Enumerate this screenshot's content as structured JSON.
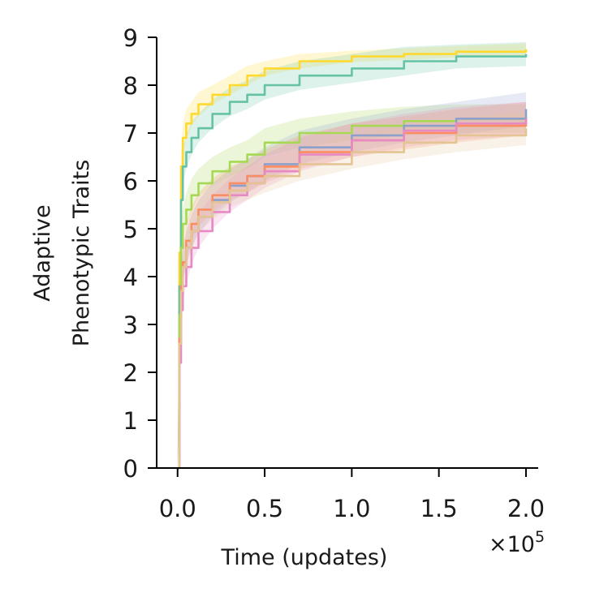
{
  "chart_data": {
    "type": "line",
    "xlabel": "Time (updates)",
    "x_multiplier_base": "×10",
    "x_multiplier_exp": "5",
    "ylabel_lines": [
      "Adaptive",
      "Phenotypic Traits"
    ],
    "xlim": [
      -0.12,
      2.07
    ],
    "ylim": [
      0,
      9
    ],
    "xticks": [
      0.0,
      0.5,
      1.0,
      1.5,
      2.0
    ],
    "xtick_labels": [
      "0.0",
      "0.5",
      "1.0",
      "1.5",
      "2.0"
    ],
    "yticks": [
      0,
      1,
      2,
      3,
      4,
      5,
      6,
      7,
      8,
      9
    ],
    "ytick_labels": [
      "0",
      "1",
      "2",
      "3",
      "4",
      "5",
      "6",
      "7",
      "8",
      "9"
    ],
    "grid": false,
    "series": [
      {
        "color": "#ffd92f",
        "x": [
          0,
          0.01,
          0.02,
          0.03,
          0.05,
          0.08,
          0.12,
          0.2,
          0.3,
          0.4,
          0.5,
          0.7,
          1.0,
          1.3,
          1.6,
          2.0
        ],
        "y": [
          0,
          4.5,
          6.3,
          6.9,
          7.2,
          7.4,
          7.6,
          7.8,
          8.0,
          8.2,
          8.35,
          8.5,
          8.6,
          8.65,
          8.7,
          8.75
        ],
        "band": [
          0.25,
          0.35,
          0.3,
          0.3,
          0.3,
          0.25,
          0.25,
          0.2,
          0.2,
          0.2,
          0.15,
          0.15,
          0.12,
          0.12,
          0.12,
          0.12
        ]
      },
      {
        "color": "#66c2a5",
        "x": [
          0,
          0.01,
          0.02,
          0.03,
          0.05,
          0.08,
          0.12,
          0.2,
          0.3,
          0.4,
          0.5,
          0.7,
          1.0,
          1.3,
          1.6,
          2.0
        ],
        "y": [
          0,
          3.8,
          5.6,
          6.3,
          6.6,
          6.9,
          7.1,
          7.4,
          7.65,
          7.8,
          8.0,
          8.2,
          8.35,
          8.5,
          8.6,
          8.65
        ],
        "band": [
          0.3,
          0.45,
          0.4,
          0.4,
          0.35,
          0.35,
          0.3,
          0.3,
          0.3,
          0.3,
          0.3,
          0.3,
          0.3,
          0.3,
          0.25,
          0.25
        ]
      },
      {
        "color": "#a6d854",
        "x": [
          0,
          0.01,
          0.02,
          0.03,
          0.05,
          0.08,
          0.12,
          0.2,
          0.3,
          0.4,
          0.5,
          0.7,
          1.0,
          1.3,
          1.6,
          2.0
        ],
        "y": [
          0,
          3.2,
          4.6,
          5.1,
          5.4,
          5.7,
          5.95,
          6.2,
          6.4,
          6.55,
          6.8,
          7.0,
          7.15,
          7.25,
          7.3,
          7.3
        ],
        "band": [
          0.3,
          0.45,
          0.4,
          0.35,
          0.35,
          0.35,
          0.3,
          0.3,
          0.3,
          0.3,
          0.3,
          0.3,
          0.3,
          0.3,
          0.3,
          0.3
        ]
      },
      {
        "color": "#8da0cb",
        "x": [
          0,
          0.01,
          0.02,
          0.03,
          0.05,
          0.08,
          0.12,
          0.2,
          0.3,
          0.4,
          0.5,
          0.7,
          1.0,
          1.3,
          1.6,
          2.0
        ],
        "y": [
          0,
          2.6,
          3.7,
          4.2,
          4.6,
          4.95,
          5.25,
          5.6,
          5.9,
          6.1,
          6.35,
          6.7,
          6.95,
          7.15,
          7.3,
          7.5
        ],
        "band": [
          0.3,
          0.4,
          0.4,
          0.35,
          0.35,
          0.35,
          0.35,
          0.35,
          0.35,
          0.35,
          0.35,
          0.35,
          0.35,
          0.35,
          0.35,
          0.35
        ]
      },
      {
        "color": "#fc8d62",
        "x": [
          0,
          0.01,
          0.02,
          0.03,
          0.05,
          0.08,
          0.12,
          0.2,
          0.3,
          0.4,
          0.5,
          0.7,
          1.0,
          1.3,
          1.6,
          2.0
        ],
        "y": [
          0,
          2.7,
          3.8,
          4.3,
          4.75,
          5.1,
          5.4,
          5.7,
          5.95,
          6.1,
          6.3,
          6.6,
          6.85,
          7.0,
          7.15,
          7.3
        ],
        "band": [
          0.3,
          0.4,
          0.4,
          0.35,
          0.35,
          0.35,
          0.35,
          0.35,
          0.35,
          0.35,
          0.35,
          0.35,
          0.35,
          0.35,
          0.35,
          0.35
        ]
      },
      {
        "color": "#e78ac3",
        "x": [
          0,
          0.01,
          0.02,
          0.03,
          0.05,
          0.08,
          0.12,
          0.2,
          0.3,
          0.4,
          0.5,
          0.7,
          1.0,
          1.3,
          1.6,
          2.0
        ],
        "y": [
          0,
          2.2,
          3.3,
          3.8,
          4.2,
          4.6,
          4.95,
          5.35,
          5.7,
          5.95,
          6.2,
          6.55,
          6.85,
          7.05,
          7.2,
          7.3
        ],
        "band": [
          0.3,
          0.4,
          0.4,
          0.35,
          0.35,
          0.35,
          0.35,
          0.35,
          0.35,
          0.35,
          0.35,
          0.35,
          0.35,
          0.35,
          0.35,
          0.35
        ]
      },
      {
        "color": "#e5c494",
        "x": [
          0,
          0.01,
          0.02,
          0.03,
          0.05,
          0.08,
          0.12,
          0.2,
          0.3,
          0.4,
          0.5,
          0.7,
          1.0,
          1.3,
          1.6,
          2.0
        ],
        "y": [
          0,
          2.6,
          3.7,
          4.2,
          4.6,
          4.95,
          5.25,
          5.55,
          5.8,
          5.95,
          6.1,
          6.35,
          6.6,
          6.8,
          6.95,
          7.1
        ],
        "band": [
          0.3,
          0.4,
          0.4,
          0.35,
          0.35,
          0.35,
          0.35,
          0.35,
          0.35,
          0.35,
          0.35,
          0.35,
          0.35,
          0.35,
          0.35,
          0.35
        ]
      }
    ]
  }
}
